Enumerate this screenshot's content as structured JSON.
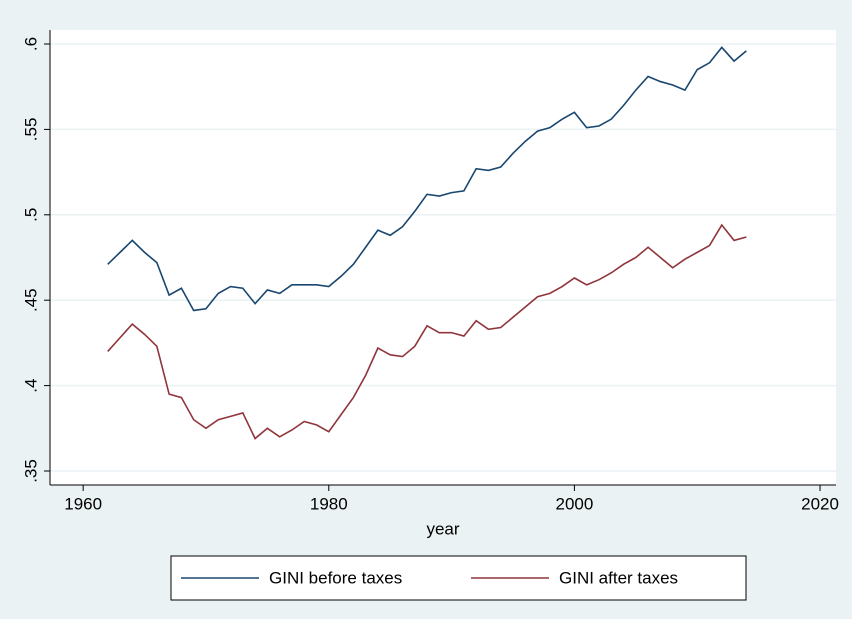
{
  "chart_data": {
    "type": "line",
    "x_label": "year",
    "x": [
      1962,
      1963,
      1964,
      1965,
      1966,
      1967,
      1968,
      1969,
      1970,
      1971,
      1972,
      1973,
      1974,
      1975,
      1976,
      1977,
      1978,
      1979,
      1980,
      1981,
      1982,
      1983,
      1984,
      1985,
      1986,
      1987,
      1988,
      1989,
      1990,
      1991,
      1992,
      1993,
      1994,
      1995,
      1996,
      1997,
      1998,
      1999,
      2000,
      2001,
      2002,
      2003,
      2004,
      2005,
      2006,
      2007,
      2008,
      2009,
      2010,
      2011,
      2012,
      2013,
      2014
    ],
    "series": [
      {
        "name": "GINI before taxes",
        "color": "#1a476f",
        "values": [
          0.471,
          0.478,
          0.485,
          0.478,
          0.472,
          0.453,
          0.457,
          0.444,
          0.445,
          0.454,
          0.458,
          0.457,
          0.448,
          0.456,
          0.454,
          0.459,
          0.459,
          0.459,
          0.458,
          0.464,
          0.471,
          0.481,
          0.491,
          0.488,
          0.493,
          0.502,
          0.512,
          0.511,
          0.513,
          0.514,
          0.527,
          0.526,
          0.528,
          0.536,
          0.543,
          0.549,
          0.551,
          0.556,
          0.56,
          0.551,
          0.552,
          0.556,
          0.564,
          0.573,
          0.581,
          0.578,
          0.576,
          0.573,
          0.585,
          0.589,
          0.598,
          0.59,
          0.596
        ]
      },
      {
        "name": "GINI after taxes",
        "color": "#90353b",
        "values": [
          0.42,
          0.428,
          0.436,
          0.43,
          0.423,
          0.395,
          0.393,
          0.38,
          0.375,
          0.38,
          0.382,
          0.384,
          0.369,
          0.375,
          0.37,
          0.374,
          0.379,
          0.377,
          0.373,
          0.383,
          0.393,
          0.406,
          0.422,
          0.418,
          0.417,
          0.423,
          0.435,
          0.431,
          0.431,
          0.429,
          0.438,
          0.433,
          0.434,
          0.44,
          0.446,
          0.452,
          0.454,
          0.458,
          0.463,
          0.459,
          0.462,
          0.466,
          0.471,
          0.475,
          0.481,
          0.475,
          0.469,
          0.474,
          0.478,
          0.482,
          0.494,
          0.485,
          0.487
        ]
      }
    ],
    "xlim": [
      1957.3,
      2021.3
    ],
    "xticks": [
      1960,
      1980,
      2000,
      2020
    ],
    "ylim": [
      0.3418,
      0.6082
    ],
    "yticks": [
      {
        "value": 0.35,
        "label": ".35"
      },
      {
        "value": 0.4,
        "label": ".4"
      },
      {
        "value": 0.45,
        "label": ".45"
      },
      {
        "value": 0.5,
        "label": ".5"
      },
      {
        "value": 0.55,
        "label": ".55"
      },
      {
        "value": 0.6,
        "label": ".6"
      }
    ],
    "grid": true,
    "legend": "bottom"
  }
}
